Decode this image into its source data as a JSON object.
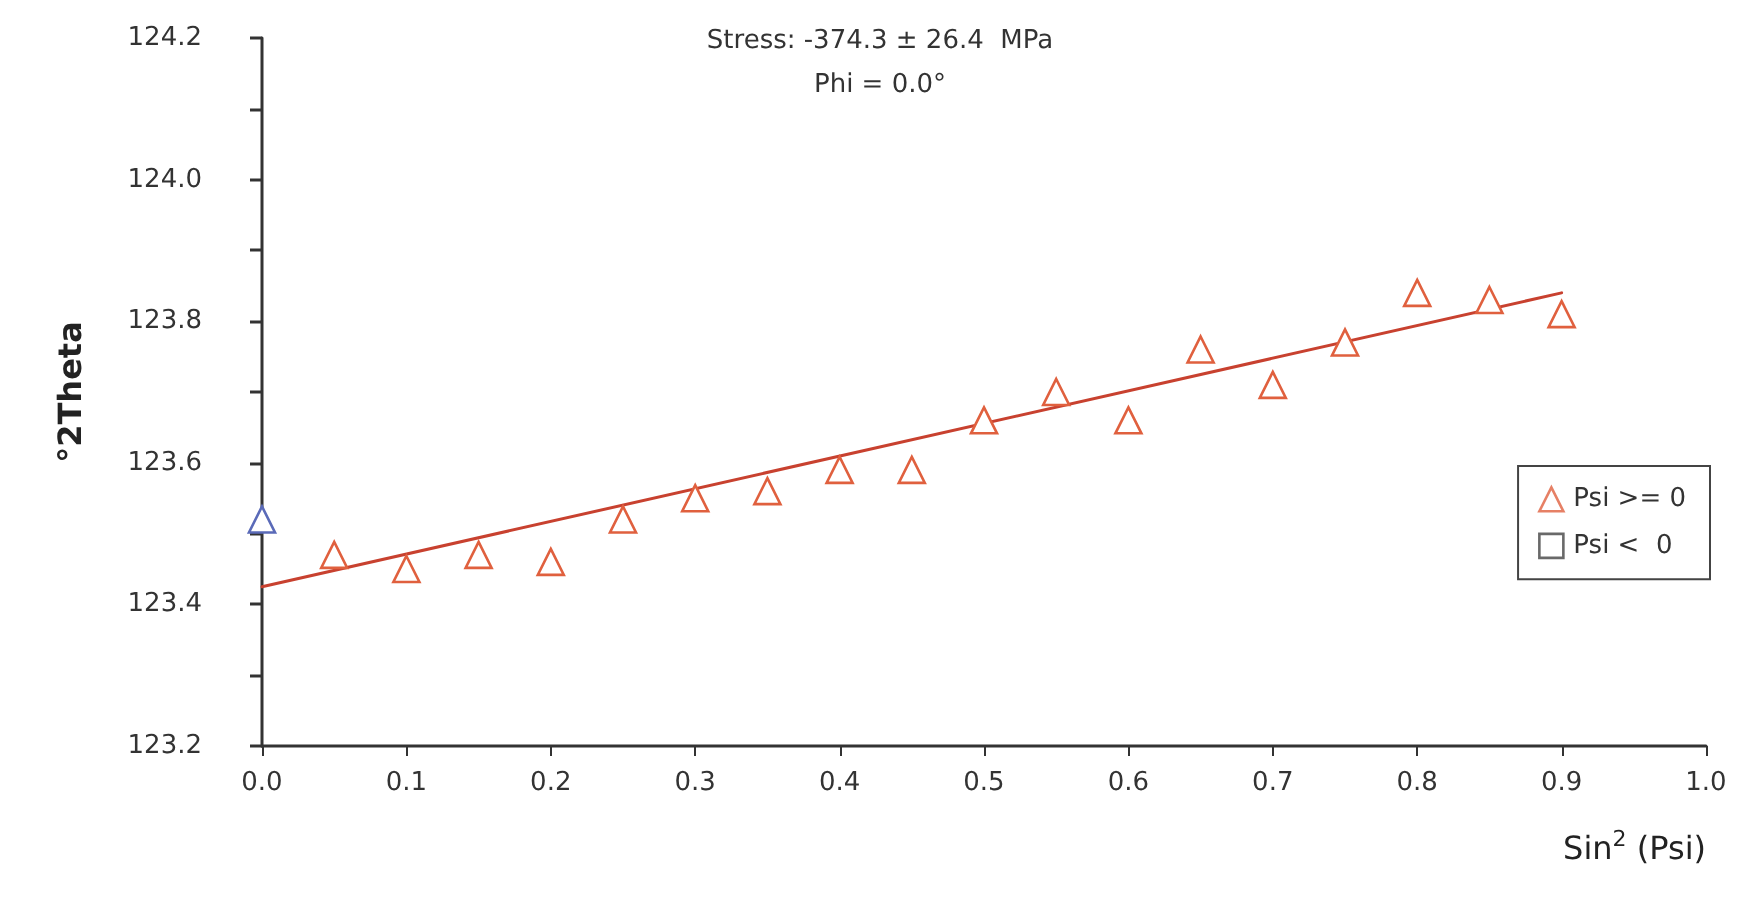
{
  "chart_data": {
    "type": "scatter",
    "xlabel": "Sin$^{2}$ (Psi)",
    "ylabel": "°2Theta",
    "annotations": [
      "Stress: -374.3 ± 26.4  MPa",
      "Phi = 0.0°"
    ],
    "x": [
      0,
      0.05,
      0.1,
      0.15,
      0.2,
      0.25,
      0.3,
      0.35,
      0.4,
      0.45,
      0.5,
      0.55,
      0.6,
      0.65,
      0.7,
      0.75,
      0.8,
      0.85,
      0.9
    ],
    "series": [
      {
        "name": "Psi >= 0",
        "color": "#e0603e",
        "marker": "triangle",
        "colors": [
          "#5a6ab8",
          "#e0603e",
          "#e0603e",
          "#e0603e",
          "#e0603e",
          "#e0603e",
          "#e0603e",
          "#e0603e",
          "#e0603e",
          "#e0603e",
          "#e0603e",
          "#e0603e",
          "#e0603e",
          "#e0603e",
          "#e0603e",
          "#e0603e",
          "#e0603e",
          "#e0603e",
          "#e0603e"
        ],
        "values": [
          123.52,
          123.47,
          123.45,
          123.47,
          123.46,
          123.52,
          123.55,
          123.56,
          123.59,
          123.59,
          123.66,
          123.7,
          123.66,
          123.76,
          123.71,
          123.77,
          123.84,
          123.83,
          123.81
        ]
      },
      {
        "name": "Psi <  0",
        "color": "#444444",
        "marker": "square",
        "values": [
          null,
          null,
          null,
          null,
          null,
          null,
          null,
          null,
          null,
          null,
          null,
          null,
          null,
          null,
          null,
          null,
          null,
          null,
          null
        ]
      },
      {
        "type": "line",
        "color": "#c8412f",
        "marker": "none",
        "line_style": "solid",
        "x": [
          0,
          0.9
        ],
        "values": [
          123.425,
          123.84
        ]
      }
    ],
    "xlim": [
      0,
      1
    ],
    "xticks": [
      {
        "value": 0,
        "label": "0.0"
      },
      {
        "value": 0.1,
        "label": "0.1"
      },
      {
        "value": 0.2,
        "label": "0.2"
      },
      {
        "value": 0.3,
        "label": "0.3"
      },
      {
        "value": 0.4,
        "label": "0.4"
      },
      {
        "value": 0.5,
        "label": "0.5"
      },
      {
        "value": 0.6,
        "label": "0.6"
      },
      {
        "value": 0.7,
        "label": "0.7"
      },
      {
        "value": 0.8,
        "label": "0.8"
      },
      {
        "value": 0.9,
        "label": "0.9"
      },
      {
        "value": 1,
        "label": "1.0"
      }
    ],
    "ylim": [
      123.2,
      124.2
    ],
    "yticks": [
      {
        "value": 123.2,
        "label": "123.2"
      },
      {
        "value": 123.3,
        "label": null
      },
      {
        "value": 123.4,
        "label": "123.4"
      },
      {
        "value": 123.5,
        "label": null
      },
      {
        "value": 123.6,
        "label": "123.6"
      },
      {
        "value": 123.7,
        "label": null
      },
      {
        "value": 123.8,
        "label": "123.8"
      },
      {
        "value": 123.9,
        "label": null
      },
      {
        "value": 124,
        "label": "124.0"
      },
      {
        "value": 124.1,
        "label": null
      },
      {
        "value": 124.2,
        "label": "124.2"
      }
    ],
    "grid": false,
    "legend": "right"
  }
}
